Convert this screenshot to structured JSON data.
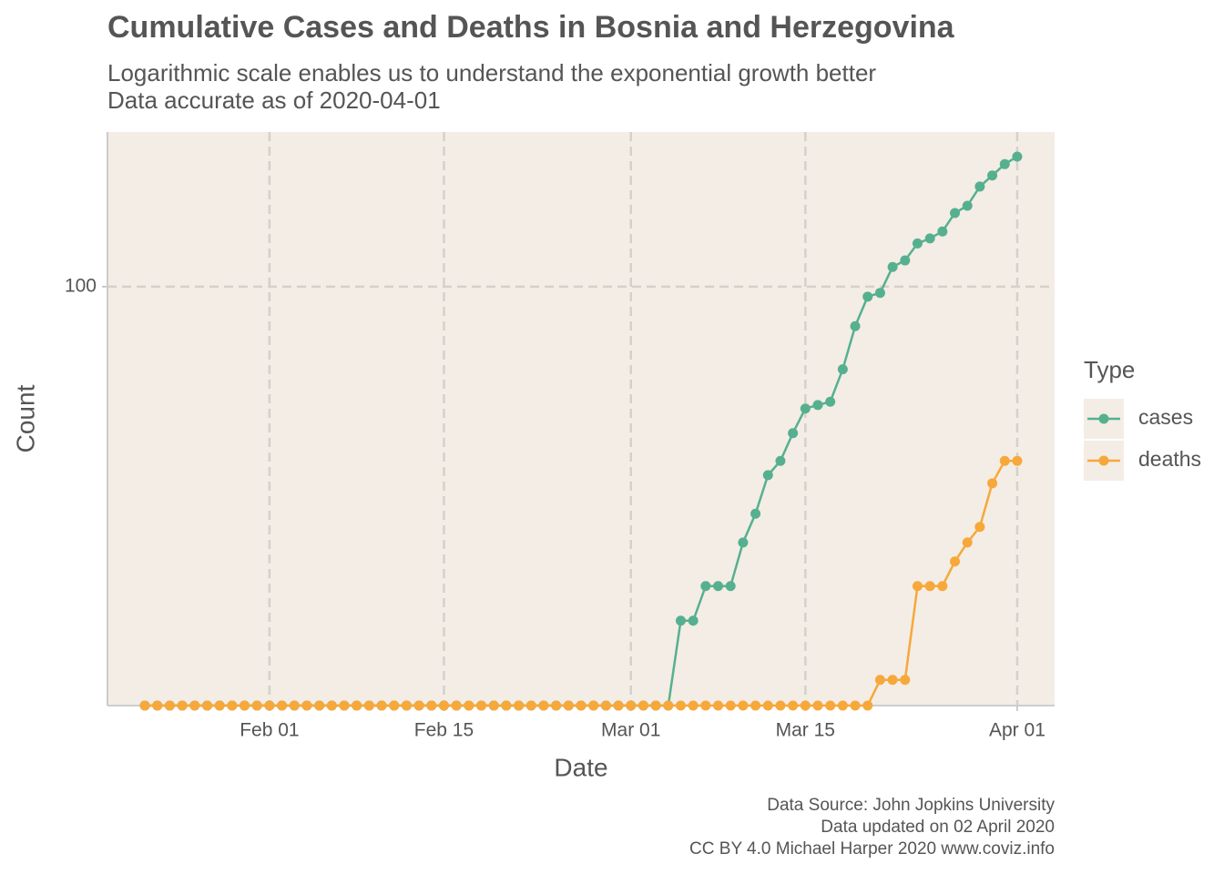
{
  "chart_data": {
    "type": "line",
    "title": "Cumulative Cases and Deaths in Bosnia and Herzegovina",
    "subtitle": [
      "Logarithmic scale enables us to understand the exponential growth better",
      "Data accurate as of 2020-04-01"
    ],
    "x_label": "Date",
    "y_label": "Count",
    "caption": [
      "Data Source: John Jopkins University",
      "Data updated on 02 April 2020",
      "CC BY 4.0 Michael Harper 2020 www.coviz.info"
    ],
    "legend_title": "Type",
    "log_y": true,
    "grid": true,
    "x": [
      "2020-01-22",
      "2020-01-23",
      "2020-01-24",
      "2020-01-25",
      "2020-01-26",
      "2020-01-27",
      "2020-01-28",
      "2020-01-29",
      "2020-01-30",
      "2020-01-31",
      "2020-02-01",
      "2020-02-02",
      "2020-02-03",
      "2020-02-04",
      "2020-02-05",
      "2020-02-06",
      "2020-02-07",
      "2020-02-08",
      "2020-02-09",
      "2020-02-10",
      "2020-02-11",
      "2020-02-12",
      "2020-02-13",
      "2020-02-14",
      "2020-02-15",
      "2020-02-16",
      "2020-02-17",
      "2020-02-18",
      "2020-02-19",
      "2020-02-20",
      "2020-02-21",
      "2020-02-22",
      "2020-02-23",
      "2020-02-24",
      "2020-02-25",
      "2020-02-26",
      "2020-02-27",
      "2020-02-28",
      "2020-02-29",
      "2020-03-01",
      "2020-03-02",
      "2020-03-03",
      "2020-03-04",
      "2020-03-05",
      "2020-03-06",
      "2020-03-07",
      "2020-03-08",
      "2020-03-09",
      "2020-03-10",
      "2020-03-11",
      "2020-03-12",
      "2020-03-13",
      "2020-03-14",
      "2020-03-15",
      "2020-03-16",
      "2020-03-17",
      "2020-03-18",
      "2020-03-19",
      "2020-03-20",
      "2020-03-21",
      "2020-03-22",
      "2020-03-23",
      "2020-03-24",
      "2020-03-25",
      "2020-03-26",
      "2020-03-27",
      "2020-03-28",
      "2020-03-29",
      "2020-03-30",
      "2020-03-31",
      "2020-04-01"
    ],
    "series": [
      {
        "name": "cases",
        "color": "#56b08f",
        "values": [
          0,
          0,
          0,
          0,
          0,
          0,
          0,
          0,
          0,
          0,
          0,
          0,
          0,
          0,
          0,
          0,
          0,
          0,
          0,
          0,
          0,
          0,
          0,
          0,
          0,
          0,
          0,
          0,
          0,
          0,
          0,
          0,
          0,
          0,
          0,
          0,
          0,
          0,
          0,
          0,
          0,
          0,
          0,
          2,
          2,
          3,
          3,
          3,
          5,
          7,
          11,
          13,
          18,
          24,
          25,
          26,
          38,
          63,
          89,
          93,
          126,
          136,
          166,
          176,
          191,
          237,
          258,
          323,
          368,
          420,
          459
        ]
      },
      {
        "name": "deaths",
        "color": "#f7a83a",
        "values": [
          0,
          0,
          0,
          0,
          0,
          0,
          0,
          0,
          0,
          0,
          0,
          0,
          0,
          0,
          0,
          0,
          0,
          0,
          0,
          0,
          0,
          0,
          0,
          0,
          0,
          0,
          0,
          0,
          0,
          0,
          0,
          0,
          0,
          0,
          0,
          0,
          0,
          0,
          0,
          0,
          0,
          0,
          0,
          0,
          0,
          0,
          0,
          0,
          0,
          0,
          0,
          0,
          0,
          0,
          0,
          0,
          0,
          0,
          0,
          1,
          1,
          1,
          3,
          3,
          3,
          4,
          5,
          6,
          10,
          13,
          13
        ]
      }
    ],
    "xlim": [
      "2020-01-19",
      "2020-04-04"
    ],
    "xticks": [
      {
        "value": "2020-02-01",
        "label": "Feb 01"
      },
      {
        "value": "2020-02-15",
        "label": "Feb 15"
      },
      {
        "value": "2020-03-01",
        "label": "Mar 01"
      },
      {
        "value": "2020-03-15",
        "label": "Mar 15"
      },
      {
        "value": "2020-04-01",
        "label": "Apr 01"
      }
    ],
    "ylim": [
      0.74,
      612
    ],
    "yticks": [
      100
    ]
  }
}
